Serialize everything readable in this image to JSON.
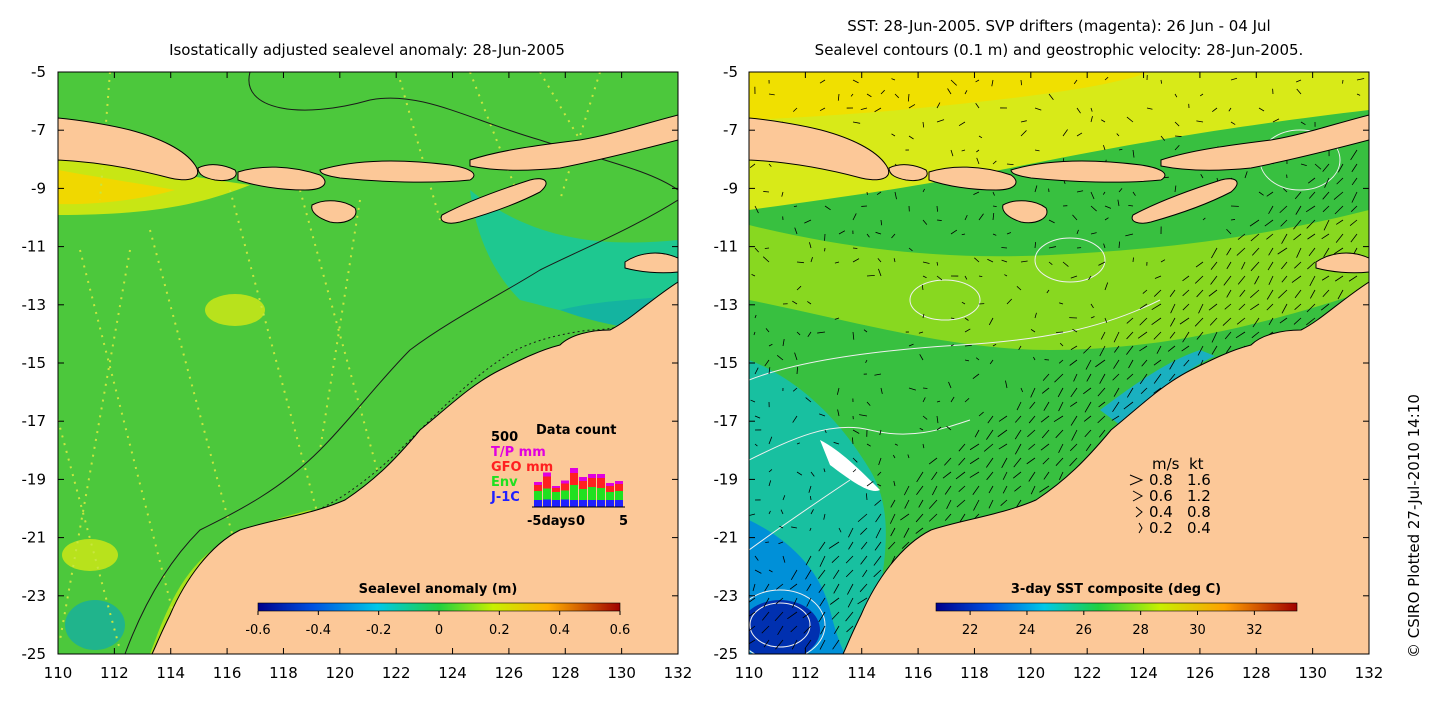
{
  "left_panel": {
    "title": "Isostatically adjusted sealevel anomaly: 28-Jun-2005",
    "x_ticks": [
      "110",
      "112",
      "114",
      "116",
      "118",
      "120",
      "122",
      "124",
      "126",
      "128",
      "130",
      "132"
    ],
    "y_ticks": [
      "-5",
      "-7",
      "-9",
      "-11",
      "-13",
      "-15",
      "-17",
      "-19",
      "-21",
      "-23",
      "-25"
    ],
    "colorbar": {
      "title": "Sealevel anomaly (m)",
      "ticks": [
        "-0.6",
        "-0.4",
        "-0.2",
        "0",
        "0.2",
        "0.4",
        "0.6"
      ],
      "range": [
        -0.6,
        0.6
      ]
    },
    "data_count": {
      "title": "Data count",
      "max_label": "500",
      "legend": [
        {
          "label": "T/P mm",
          "color": "#e000e0"
        },
        {
          "label": "GFO mm",
          "color": "#ff2020"
        },
        {
          "label": "Env",
          "color": "#20e020"
        },
        {
          "label": "J-1C",
          "color": "#2020ff"
        }
      ],
      "x_label": "-5days",
      "x_ticks": [
        "0",
        "5"
      ],
      "bars": [
        {
          "day": -5,
          "jason": 70,
          "env": 90,
          "gfo": 60,
          "tp": 30
        },
        {
          "day": -4,
          "jason": 75,
          "env": 110,
          "gfo": 120,
          "tp": 40
        },
        {
          "day": -3,
          "jason": 70,
          "env": 80,
          "gfo": 40,
          "tp": 20
        },
        {
          "day": -2,
          "jason": 75,
          "env": 90,
          "gfo": 70,
          "tp": 30
        },
        {
          "day": -1,
          "jason": 70,
          "env": 150,
          "gfo": 120,
          "tp": 50
        },
        {
          "day": 0,
          "jason": 70,
          "env": 110,
          "gfo": 80,
          "tp": 40
        },
        {
          "day": 1,
          "jason": 70,
          "env": 130,
          "gfo": 90,
          "tp": 40
        },
        {
          "day": 2,
          "jason": 70,
          "env": 120,
          "gfo": 100,
          "tp": 40
        },
        {
          "day": 3,
          "jason": 70,
          "env": 80,
          "gfo": 60,
          "tp": 30
        },
        {
          "day": 4,
          "jason": 70,
          "env": 90,
          "gfo": 70,
          "tp": 30
        }
      ]
    }
  },
  "right_panel": {
    "title_line1": "SST: 28-Jun-2005. SVP drifters (magenta): 26 Jun - 04 Jul",
    "title_line2": "Sealevel contours (0.1 m) and geostrophic velocity: 28-Jun-2005.",
    "x_ticks": [
      "110",
      "112",
      "114",
      "116",
      "118",
      "120",
      "122",
      "124",
      "126",
      "128",
      "130",
      "132"
    ],
    "y_ticks": [
      "-5",
      "-7",
      "-9",
      "-11",
      "-13",
      "-15",
      "-17",
      "-19",
      "-21",
      "-23",
      "-25"
    ],
    "colorbar": {
      "title": "3-day SST composite (deg C)",
      "ticks": [
        "22",
        "24",
        "26",
        "28",
        "30",
        "32"
      ],
      "range": [
        20.8,
        33.5
      ]
    },
    "velocity_legend": {
      "header_ms": "m/s",
      "header_kt": "kt",
      "rows": [
        {
          "ms": "0.8",
          "kt": "1.6"
        },
        {
          "ms": "0.6",
          "kt": "1.2"
        },
        {
          "ms": "0.4",
          "kt": "0.8"
        },
        {
          "ms": "0.2",
          "kt": "0.4"
        }
      ]
    }
  },
  "credit": "© CSIRO Plotted 27-Jul-2010 14:10",
  "colors": {
    "land": "#fcc898",
    "sea_level_base": "#4cc83c",
    "sst_base": "#3cc83c"
  }
}
